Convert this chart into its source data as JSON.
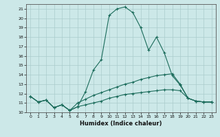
{
  "xlabel": "Humidex (Indice chaleur)",
  "background_color": "#cce8e8",
  "line_color": "#1a6b5a",
  "grid_color": "#aacccc",
  "xlim": [
    -0.5,
    23.5
  ],
  "ylim": [
    10.0,
    21.5
  ],
  "yticks": [
    10,
    11,
    12,
    13,
    14,
    15,
    16,
    17,
    18,
    19,
    20,
    21
  ],
  "xticks": [
    0,
    1,
    2,
    3,
    4,
    5,
    6,
    7,
    8,
    9,
    10,
    11,
    12,
    13,
    14,
    15,
    16,
    17,
    18,
    19,
    20,
    21,
    22,
    23
  ],
  "series": [
    [
      11.7,
      11.1,
      11.3,
      10.5,
      10.8,
      10.2,
      10.6,
      12.2,
      14.5,
      15.6,
      20.3,
      21.0,
      21.2,
      20.6,
      19.0,
      16.6,
      18.0,
      16.3,
      13.9,
      12.9,
      11.5,
      11.2,
      11.1,
      11.1
    ],
    [
      11.7,
      11.1,
      11.3,
      10.5,
      10.8,
      10.2,
      11.0,
      11.4,
      11.8,
      12.1,
      12.4,
      12.7,
      13.0,
      13.2,
      13.5,
      13.7,
      13.9,
      14.0,
      14.1,
      13.0,
      11.5,
      11.2,
      11.1,
      11.1
    ],
    [
      11.7,
      11.1,
      11.3,
      10.5,
      10.8,
      10.2,
      10.6,
      10.8,
      11.0,
      11.2,
      11.5,
      11.7,
      11.9,
      12.0,
      12.1,
      12.2,
      12.3,
      12.4,
      12.4,
      12.3,
      11.5,
      11.2,
      11.1,
      11.1
    ]
  ]
}
